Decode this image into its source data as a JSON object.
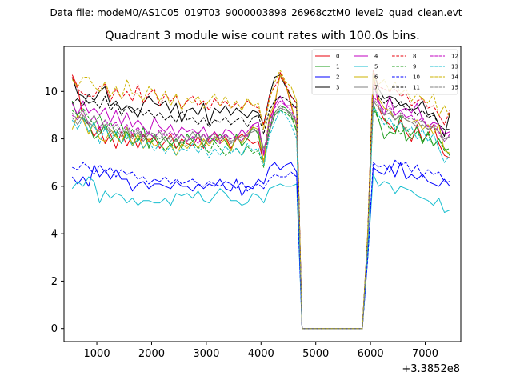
{
  "chart_data": {
    "type": "line",
    "suptitle": "Data file: modeM0/AS1C05_019T03_9000003898_26968cztM0_level2_quad_clean.evt",
    "title": "Quadrant 3 module wise count rates with 100.0s bins.",
    "xlabel": "",
    "ylabel": "",
    "x_offset_label": "+3.3852e8",
    "xlim": [
      400,
      7650
    ],
    "ylim": [
      -0.55,
      11.9
    ],
    "xticks": [
      1000,
      2000,
      3000,
      4000,
      5000,
      6000,
      7000
    ],
    "yticks": [
      0,
      2,
      4,
      6,
      8,
      10
    ],
    "legend": {
      "location": "top-right",
      "columns": 4
    },
    "x": [
      550,
      650,
      750,
      850,
      950,
      1050,
      1150,
      1250,
      1350,
      1450,
      1550,
      1650,
      1750,
      1850,
      1950,
      2050,
      2150,
      2250,
      2350,
      2450,
      2550,
      2650,
      2750,
      2850,
      2950,
      3050,
      3150,
      3250,
      3350,
      3450,
      3550,
      3650,
      3750,
      3850,
      3950,
      4050,
      4150,
      4250,
      4350,
      4450,
      4550,
      4650,
      4750,
      4850,
      4950,
      5050,
      5150,
      5250,
      5350,
      5450,
      5550,
      5650,
      5750,
      5850,
      5950,
      6050,
      6150,
      6250,
      6350,
      6450,
      6550,
      6650,
      6750,
      6850,
      6950,
      7050,
      7150,
      7250,
      7350,
      7450
    ],
    "series": [
      {
        "name": "0",
        "color": "#e8000b",
        "dash": "solid",
        "values": [
          10.7,
          10.2,
          8.8,
          8.6,
          8.1,
          8.5,
          7.8,
          8.2,
          7.6,
          8.3,
          7.7,
          8.2,
          7.6,
          8.2,
          7.9,
          8.1,
          7.6,
          7.9,
          8.2,
          7.6,
          8.0,
          7.8,
          7.7,
          8.1,
          7.6,
          8.0,
          8.3,
          7.9,
          8.1,
          7.6,
          8.0,
          8.2,
          8.0,
          7.8,
          7.9,
          7.0,
          8.8,
          9.4,
          10.8,
          10.3,
          9.4,
          8.6,
          0,
          0,
          0,
          0,
          0,
          0,
          0,
          0,
          0,
          0,
          0,
          0,
          3.8,
          10.8,
          9.3,
          8.8,
          8.6,
          8.3,
          8.8,
          8.3,
          7.9,
          8.6,
          7.9,
          8.2,
          8.6,
          7.8,
          7.3,
          7.2
        ]
      },
      {
        "name": "1",
        "color": "#1a9e1a",
        "dash": "solid",
        "values": [
          9.6,
          8.9,
          8.9,
          8.6,
          8.0,
          8.2,
          8.6,
          7.9,
          8.2,
          7.8,
          8.3,
          7.8,
          7.9,
          8.5,
          7.6,
          8.2,
          7.8,
          8.1,
          7.7,
          8.0,
          7.6,
          8.2,
          7.9,
          8.3,
          7.7,
          8.1,
          7.9,
          8.2,
          7.9,
          7.5,
          8.2,
          7.7,
          8.0,
          8.5,
          8.2,
          7.0,
          8.8,
          9.1,
          9.4,
          9.3,
          9.0,
          8.3,
          0,
          0,
          0,
          0,
          0,
          0,
          0,
          0,
          0,
          0,
          0,
          0,
          3.7,
          9.5,
          8.8,
          8.0,
          8.3,
          8.2,
          9.0,
          7.9,
          8.2,
          8.5,
          7.8,
          8.3,
          7.7,
          8.0,
          7.6,
          7.3
        ]
      },
      {
        "name": "2",
        "color": "#0000ff",
        "dash": "solid",
        "values": [
          6.4,
          6.1,
          6.4,
          6.0,
          6.9,
          6.4,
          6.7,
          6.3,
          6.7,
          6.3,
          6.3,
          5.8,
          6.1,
          6.2,
          5.9,
          6.1,
          6.1,
          6.0,
          5.9,
          6.2,
          6.0,
          6.0,
          5.8,
          6.1,
          5.9,
          6.1,
          6.0,
          6.3,
          5.9,
          5.8,
          6.3,
          5.6,
          6.0,
          5.9,
          6.3,
          6.1,
          6.8,
          7.0,
          6.7,
          6.9,
          7.0,
          6.6,
          0,
          0,
          0,
          0,
          0,
          0,
          0,
          0,
          0,
          0,
          0,
          0,
          3.0,
          6.8,
          6.6,
          6.5,
          6.9,
          6.4,
          7.0,
          6.3,
          6.5,
          6.3,
          6.5,
          6.2,
          6.1,
          6.0,
          6.3,
          6.0
        ]
      },
      {
        "name": "3",
        "color": "#000000",
        "dash": "solid",
        "values": [
          10.6,
          9.9,
          9.8,
          9.5,
          9.6,
          10.0,
          10.2,
          9.4,
          9.6,
          9.2,
          9.4,
          9.3,
          8.9,
          9.5,
          9.8,
          9.5,
          9.4,
          9.6,
          9.1,
          9.5,
          8.7,
          9.2,
          9.3,
          9.0,
          9.5,
          8.6,
          9.3,
          9.1,
          9.4,
          9.0,
          9.3,
          9.1,
          8.9,
          9.2,
          9.1,
          8.6,
          9.8,
          10.6,
          10.7,
          10.2,
          9.8,
          9.5,
          0,
          0,
          0,
          0,
          0,
          0,
          0,
          0,
          0,
          0,
          0,
          0,
          4.0,
          10.9,
          10.1,
          9.7,
          9.8,
          9.7,
          9.4,
          9.5,
          9.2,
          9.3,
          9.6,
          9.0,
          9.1,
          8.6,
          8.1,
          9.1
        ]
      },
      {
        "name": "4",
        "color": "#c000c0",
        "dash": "solid",
        "values": [
          9.5,
          9.0,
          9.6,
          9.1,
          9.3,
          9.0,
          9.3,
          8.7,
          9.2,
          8.6,
          9.1,
          8.5,
          8.8,
          8.5,
          8.2,
          8.9,
          8.5,
          8.3,
          8.6,
          8.1,
          8.5,
          8.3,
          8.4,
          8.2,
          8.5,
          8.0,
          8.3,
          8.0,
          8.4,
          8.3,
          8.0,
          8.4,
          8.1,
          8.6,
          8.7,
          7.3,
          8.3,
          9.4,
          9.8,
          9.4,
          9.4,
          9.3,
          0,
          0,
          0,
          0,
          0,
          0,
          0,
          0,
          0,
          0,
          0,
          0,
          3.8,
          10.3,
          9.6,
          9.0,
          9.8,
          9.0,
          9.2,
          9.3,
          9.1,
          9.5,
          8.8,
          8.5,
          8.7,
          8.6,
          8.2,
          8.3
        ]
      },
      {
        "name": "5",
        "color": "#17becf",
        "dash": "solid",
        "values": [
          5.9,
          6.2,
          6.0,
          6.4,
          6.2,
          5.3,
          5.8,
          5.5,
          5.7,
          5.6,
          5.3,
          5.5,
          5.2,
          5.4,
          5.4,
          5.3,
          5.3,
          5.5,
          5.2,
          5.7,
          5.6,
          5.7,
          5.5,
          5.8,
          5.4,
          5.3,
          5.6,
          5.9,
          5.7,
          5.4,
          5.4,
          5.2,
          5.3,
          5.7,
          5.6,
          5.3,
          5.9,
          6.0,
          6.1,
          6.0,
          6.0,
          6.1,
          0,
          0,
          0,
          0,
          0,
          0,
          0,
          0,
          0,
          0,
          0,
          0,
          3.0,
          6.5,
          6.0,
          6.2,
          6.1,
          5.7,
          6.0,
          5.9,
          5.8,
          5.6,
          5.5,
          5.4,
          5.2,
          5.5,
          4.9,
          5.0
        ]
      },
      {
        "name": "6",
        "color": "#ccb300",
        "dash": "solid",
        "values": [
          8.4,
          9.0,
          8.8,
          8.2,
          8.7,
          8.0,
          7.9,
          8.4,
          8.1,
          7.8,
          8.5,
          7.7,
          8.2,
          7.6,
          8.0,
          7.7,
          7.8,
          7.5,
          7.8,
          7.3,
          7.8,
          7.6,
          7.9,
          7.6,
          8.0,
          7.7,
          8.1,
          7.8,
          8.0,
          7.5,
          8.1,
          7.8,
          8.2,
          8.5,
          8.4,
          7.0,
          9.0,
          9.5,
          10.7,
          10.3,
          9.5,
          8.5,
          0,
          0,
          0,
          0,
          0,
          0,
          0,
          0,
          0,
          0,
          0,
          0,
          3.6,
          10.8,
          9.7,
          9.3,
          9.2,
          8.8,
          9.0,
          8.8,
          8.7,
          8.8,
          8.4,
          8.6,
          8.2,
          8.6,
          7.5,
          7.4
        ]
      },
      {
        "name": "7",
        "color": "#808080",
        "dash": "solid",
        "values": [
          8.9,
          8.6,
          9.0,
          8.7,
          8.5,
          8.3,
          8.6,
          8.2,
          8.4,
          8.1,
          8.4,
          8.0,
          8.3,
          7.9,
          8.2,
          8.1,
          8.3,
          7.9,
          8.1,
          7.9,
          8.2,
          7.9,
          8.3,
          8.0,
          8.2,
          7.8,
          8.1,
          8.0,
          8.2,
          7.9,
          8.0,
          8.1,
          8.2,
          8.3,
          8.4,
          7.6,
          8.3,
          9.0,
          9.3,
          9.2,
          9.1,
          8.7,
          0,
          0,
          0,
          0,
          0,
          0,
          0,
          0,
          0,
          0,
          0,
          0,
          3.7,
          9.6,
          9.3,
          9.0,
          9.1,
          8.8,
          9.0,
          8.8,
          8.7,
          8.5,
          8.6,
          8.4,
          8.5,
          8.3,
          8.0,
          8.1
        ]
      },
      {
        "name": "8",
        "color": "#e8000b",
        "dash": "dashed",
        "values": [
          10.6,
          10.1,
          9.9,
          9.8,
          9.8,
          10.2,
          10.3,
          9.6,
          10.1,
          9.7,
          10.0,
          9.6,
          10.3,
          9.5,
          9.9,
          10.1,
          9.4,
          9.9,
          9.6,
          9.8,
          9.3,
          9.6,
          9.8,
          9.4,
          9.6,
          9.2,
          9.7,
          9.4,
          9.6,
          9.3,
          9.5,
          9.3,
          9.6,
          9.4,
          9.3,
          8.6,
          9.8,
          10.2,
          10.6,
          10.3,
          9.8,
          9.5,
          0,
          0,
          0,
          0,
          0,
          0,
          0,
          0,
          0,
          0,
          0,
          0,
          4.0,
          10.9,
          10.2,
          10.1,
          10.0,
          10.1,
          9.8,
          9.9,
          9.4,
          9.6,
          9.7,
          9.3,
          9.4,
          9.0,
          8.6,
          9.2
        ]
      },
      {
        "name": "9",
        "color": "#1a9e1a",
        "dash": "dashed",
        "values": [
          9.2,
          9.0,
          9.3,
          8.9,
          8.6,
          9.0,
          8.4,
          8.7,
          8.2,
          8.6,
          8.0,
          8.4,
          7.9,
          8.2,
          7.7,
          8.0,
          7.8,
          7.5,
          7.8,
          7.6,
          7.9,
          7.7,
          7.9,
          7.6,
          7.7,
          7.4,
          7.9,
          7.6,
          7.3,
          7.5,
          7.6,
          7.3,
          7.7,
          7.4,
          7.5,
          6.8,
          8.4,
          9.0,
          9.2,
          9.1,
          8.9,
          8.4,
          0,
          0,
          0,
          0,
          0,
          0,
          0,
          0,
          0,
          0,
          0,
          0,
          3.6,
          9.3,
          8.8,
          8.9,
          8.4,
          8.6,
          8.2,
          8.5,
          8.0,
          8.3,
          7.9,
          8.2,
          7.7,
          8.0,
          7.5,
          7.6
        ]
      },
      {
        "name": "10",
        "color": "#0000ff",
        "dash": "dashed",
        "values": [
          6.8,
          6.7,
          7.0,
          6.8,
          6.5,
          6.9,
          6.6,
          6.8,
          6.4,
          6.7,
          6.5,
          6.6,
          6.3,
          6.4,
          6.1,
          6.3,
          6.2,
          6.4,
          6.1,
          6.3,
          6.1,
          6.2,
          6.3,
          6.1,
          6.0,
          6.2,
          6.1,
          6.0,
          6.2,
          6.1,
          5.9,
          6.2,
          5.8,
          6.0,
          6.1,
          5.9,
          6.3,
          6.5,
          6.4,
          6.4,
          6.6,
          6.4,
          0,
          0,
          0,
          0,
          0,
          0,
          0,
          0,
          0,
          0,
          0,
          0,
          3.0,
          7.0,
          6.8,
          6.9,
          6.6,
          7.1,
          6.9,
          7.0,
          6.6,
          6.9,
          6.4,
          6.7,
          6.5,
          6.6,
          6.2,
          6.2
        ]
      },
      {
        "name": "11",
        "color": "#000000",
        "dash": "dashed",
        "values": [
          9.5,
          9.7,
          9.4,
          9.9,
          9.6,
          9.3,
          9.8,
          9.2,
          9.5,
          9.0,
          9.4,
          9.1,
          9.3,
          9.0,
          9.2,
          8.9,
          9.1,
          8.8,
          9.0,
          8.7,
          9.2,
          8.8,
          8.9,
          8.6,
          8.9,
          8.5,
          8.8,
          8.7,
          8.9,
          8.6,
          8.8,
          8.9,
          8.5,
          8.9,
          9.0,
          8.2,
          9.2,
          9.6,
          9.8,
          9.7,
          9.5,
          9.3,
          0,
          0,
          0,
          0,
          0,
          0,
          0,
          0,
          0,
          0,
          0,
          0,
          3.9,
          10.2,
          9.8,
          9.5,
          9.7,
          9.3,
          9.6,
          9.2,
          9.3,
          9.0,
          9.2,
          8.9,
          9.0,
          8.6,
          8.4,
          8.4
        ]
      },
      {
        "name": "12",
        "color": "#c000c0",
        "dash": "dashed",
        "values": [
          9.0,
          8.8,
          9.2,
          8.6,
          9.0,
          8.4,
          8.8,
          8.5,
          8.7,
          8.3,
          8.6,
          8.2,
          8.5,
          8.1,
          8.3,
          8.0,
          8.4,
          8.1,
          8.3,
          8.0,
          8.2,
          7.9,
          8.1,
          7.8,
          8.2,
          7.9,
          8.0,
          7.8,
          8.2,
          8.0,
          8.1,
          7.9,
          8.3,
          8.6,
          8.5,
          7.4,
          8.8,
          9.3,
          9.6,
          9.4,
          9.2,
          8.8,
          0,
          0,
          0,
          0,
          0,
          0,
          0,
          0,
          0,
          0,
          0,
          0,
          3.7,
          9.8,
          9.5,
          9.2,
          9.4,
          9.0,
          9.2,
          8.9,
          9.0,
          8.7,
          8.9,
          8.5,
          8.7,
          8.3,
          7.9,
          8.2
        ]
      },
      {
        "name": "13",
        "color": "#17becf",
        "dash": "dashed",
        "values": [
          8.8,
          8.4,
          8.9,
          8.3,
          8.7,
          7.8,
          8.5,
          8.0,
          8.3,
          7.8,
          8.2,
          7.7,
          8.0,
          7.6,
          7.9,
          7.5,
          7.8,
          7.4,
          7.7,
          7.3,
          7.6,
          7.5,
          7.8,
          7.4,
          7.7,
          7.2,
          7.6,
          7.3,
          7.7,
          7.4,
          7.6,
          7.3,
          7.8,
          7.5,
          7.6,
          6.9,
          8.1,
          8.7,
          9.2,
          9.0,
          8.6,
          8.0,
          0,
          0,
          0,
          0,
          0,
          0,
          0,
          0,
          0,
          0,
          0,
          0,
          3.5,
          9.4,
          9.0,
          8.6,
          8.9,
          8.4,
          8.7,
          8.3,
          8.5,
          8.0,
          8.4,
          7.9,
          8.2,
          7.6,
          7.0,
          7.3
        ]
      },
      {
        "name": "14",
        "color": "#ccb300",
        "dash": "dashed",
        "values": [
          10.5,
          10.2,
          10.6,
          10.6,
          10.2,
          10.0,
          10.4,
          9.8,
          10.2,
          9.7,
          10.5,
          9.9,
          9.9,
          9.6,
          10.2,
          10.0,
          9.6,
          10.0,
          9.4,
          9.9,
          9.2,
          9.7,
          9.5,
          9.8,
          9.3,
          9.6,
          9.9,
          9.4,
          9.8,
          9.3,
          9.6,
          9.2,
          9.7,
          9.4,
          9.5,
          8.4,
          9.6,
          10.4,
          10.9,
          10.4,
          10.2,
          9.6,
          0,
          0,
          0,
          0,
          0,
          0,
          0,
          0,
          0,
          0,
          0,
          0,
          4.1,
          10.7,
          10.3,
          10.5,
          10.0,
          10.4,
          9.9,
          10.1,
          9.6,
          9.9,
          9.7,
          9.5,
          9.9,
          9.0,
          9.4,
          8.9
        ]
      },
      {
        "name": "15",
        "color": "#808080",
        "dash": "dashed",
        "values": [
          9.1,
          8.8,
          9.2,
          8.6,
          9.0,
          8.5,
          8.8,
          8.3,
          8.6,
          8.2,
          8.5,
          8.1,
          8.4,
          8.0,
          8.3,
          8.2,
          8.0,
          8.3,
          7.9,
          8.2,
          7.8,
          8.1,
          8.0,
          8.2,
          7.9,
          8.1,
          8.2,
          7.9,
          8.1,
          7.8,
          8.0,
          7.9,
          8.2,
          8.4,
          8.3,
          7.5,
          8.5,
          9.1,
          9.4,
          9.2,
          9.0,
          8.6,
          0,
          0,
          0,
          0,
          0,
          0,
          0,
          0,
          0,
          0,
          0,
          0,
          3.7,
          9.7,
          9.4,
          9.0,
          9.3,
          8.8,
          9.1,
          8.8,
          8.9,
          8.6,
          8.8,
          8.4,
          8.6,
          8.2,
          7.9,
          8.1
        ]
      }
    ]
  }
}
